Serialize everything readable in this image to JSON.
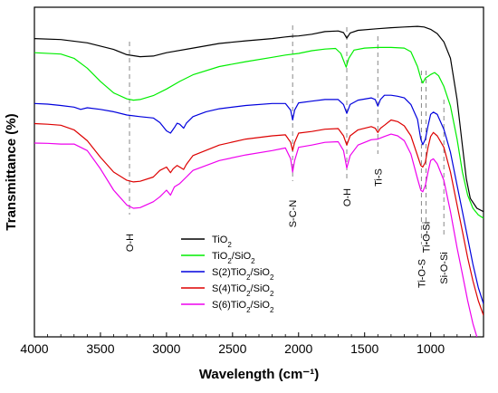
{
  "chart_data": {
    "type": "line",
    "title": "",
    "xlabel": "Wavelength (cm⁻¹)",
    "ylabel": "Transmittance (%)",
    "x_reversed": true,
    "xlim": [
      4000,
      600
    ],
    "ylim": [
      0,
      100
    ],
    "y_ticks_shown": false,
    "grid": false,
    "legend_position": "bottom-center",
    "x_ticks": [
      4000,
      3500,
      3000,
      2500,
      2000,
      1500,
      1000
    ],
    "x_tick_labels": [
      "4000",
      "3500",
      "3000",
      "2500",
      "2000",
      "1500",
      "1000"
    ],
    "annotations": [
      {
        "text": "O-H",
        "x": 3280
      },
      {
        "text": "S-C-N",
        "x": 2045
      },
      {
        "text": "O-H",
        "x": 1635
      },
      {
        "text": "Ti-S",
        "x": 1400
      },
      {
        "text": "Ti-O-S",
        "x": 1070
      },
      {
        "text": "Ti-O-Si",
        "x": 1035
      },
      {
        "text": "Si-O-Si",
        "x": 900
      }
    ],
    "series": [
      {
        "name": "TiO2",
        "label_main": "TiO",
        "label_sub": "2",
        "label_rest": "",
        "color": "#000000",
        "points": [
          [
            4000,
            90.5
          ],
          [
            3800,
            90.2
          ],
          [
            3600,
            89.2
          ],
          [
            3400,
            87.2
          ],
          [
            3300,
            85.6
          ],
          [
            3200,
            85.0
          ],
          [
            3100,
            85.2
          ],
          [
            3000,
            86.2
          ],
          [
            2800,
            87.6
          ],
          [
            2600,
            89.0
          ],
          [
            2400,
            89.8
          ],
          [
            2200,
            90.5
          ],
          [
            2100,
            91.0
          ],
          [
            2045,
            91.2
          ],
          [
            2000,
            91.3
          ],
          [
            1900,
            91.8
          ],
          [
            1800,
            92.6
          ],
          [
            1700,
            92.8
          ],
          [
            1660,
            92.3
          ],
          [
            1635,
            90.6
          ],
          [
            1610,
            92.2
          ],
          [
            1550,
            93.0
          ],
          [
            1400,
            93.5
          ],
          [
            1300,
            93.8
          ],
          [
            1200,
            94.0
          ],
          [
            1100,
            94.2
          ],
          [
            1050,
            94.0
          ],
          [
            1000,
            93.3
          ],
          [
            950,
            92.0
          ],
          [
            900,
            89.5
          ],
          [
            850,
            84.5
          ],
          [
            800,
            72.0
          ],
          [
            760,
            58.0
          ],
          [
            730,
            48.0
          ],
          [
            700,
            42.0
          ],
          [
            650,
            39.0
          ],
          [
            600,
            38.0
          ]
        ]
      },
      {
        "name": "TiO2/SiO2",
        "label_main": "TiO",
        "label_sub": "2",
        "label_rest": "/SiO2",
        "color": "#00ee00",
        "points": [
          [
            4000,
            86.2
          ],
          [
            3800,
            85.8
          ],
          [
            3700,
            84.5
          ],
          [
            3600,
            81.5
          ],
          [
            3500,
            77.5
          ],
          [
            3400,
            74.0
          ],
          [
            3300,
            72.2
          ],
          [
            3250,
            71.8
          ],
          [
            3200,
            72.0
          ],
          [
            3100,
            73.2
          ],
          [
            3000,
            75.2
          ],
          [
            2900,
            77.5
          ],
          [
            2800,
            79.5
          ],
          [
            2600,
            82.0
          ],
          [
            2400,
            83.5
          ],
          [
            2200,
            84.8
          ],
          [
            2100,
            85.5
          ],
          [
            2000,
            86.0
          ],
          [
            1900,
            86.8
          ],
          [
            1800,
            87.3
          ],
          [
            1720,
            87.5
          ],
          [
            1680,
            86.0
          ],
          [
            1640,
            81.8
          ],
          [
            1620,
            84.5
          ],
          [
            1580,
            87.0
          ],
          [
            1500,
            87.6
          ],
          [
            1400,
            87.8
          ],
          [
            1300,
            87.8
          ],
          [
            1200,
            87.6
          ],
          [
            1150,
            86.5
          ],
          [
            1100,
            82.0
          ],
          [
            1075,
            78.5
          ],
          [
            1060,
            77.0
          ],
          [
            1040,
            78.5
          ],
          [
            1020,
            79.0
          ],
          [
            1000,
            79.6
          ],
          [
            970,
            80.2
          ],
          [
            940,
            79.2
          ],
          [
            900,
            76.0
          ],
          [
            850,
            70.0
          ],
          [
            800,
            60.0
          ],
          [
            760,
            50.0
          ],
          [
            720,
            43.0
          ],
          [
            680,
            39.0
          ],
          [
            640,
            37.0
          ],
          [
            600,
            36.0
          ]
        ]
      },
      {
        "name": "S(2)TiO2/SiO2",
        "label_main": "S(2)TiO",
        "label_sub": "2",
        "label_rest": "/SiO2",
        "color": "#0000dd",
        "points": [
          [
            4000,
            70.8
          ],
          [
            3900,
            70.6
          ],
          [
            3800,
            70.2
          ],
          [
            3700,
            69.7
          ],
          [
            3650,
            69.0
          ],
          [
            3600,
            69.5
          ],
          [
            3500,
            69.0
          ],
          [
            3400,
            68.3
          ],
          [
            3300,
            67.3
          ],
          [
            3200,
            66.8
          ],
          [
            3100,
            66.4
          ],
          [
            3050,
            65.0
          ],
          [
            3000,
            62.5
          ],
          [
            2970,
            61.8
          ],
          [
            2940,
            63.5
          ],
          [
            2920,
            64.8
          ],
          [
            2900,
            64.5
          ],
          [
            2870,
            63.3
          ],
          [
            2850,
            64.8
          ],
          [
            2800,
            66.8
          ],
          [
            2700,
            68.3
          ],
          [
            2600,
            69.2
          ],
          [
            2400,
            70.2
          ],
          [
            2200,
            70.8
          ],
          [
            2100,
            70.8
          ],
          [
            2060,
            68.8
          ],
          [
            2045,
            65.8
          ],
          [
            2030,
            68.8
          ],
          [
            2000,
            71.0
          ],
          [
            1900,
            71.5
          ],
          [
            1800,
            72.0
          ],
          [
            1700,
            72.0
          ],
          [
            1660,
            70.5
          ],
          [
            1635,
            67.8
          ],
          [
            1610,
            70.5
          ],
          [
            1550,
            71.8
          ],
          [
            1450,
            72.5
          ],
          [
            1420,
            72.0
          ],
          [
            1400,
            70.0
          ],
          [
            1380,
            72.0
          ],
          [
            1350,
            73.3
          ],
          [
            1300,
            73.3
          ],
          [
            1250,
            73.0
          ],
          [
            1200,
            72.5
          ],
          [
            1150,
            70.5
          ],
          [
            1100,
            66.0
          ],
          [
            1075,
            60.0
          ],
          [
            1060,
            58.3
          ],
          [
            1040,
            60.0
          ],
          [
            1020,
            64.0
          ],
          [
            1000,
            67.5
          ],
          [
            980,
            68.2
          ],
          [
            950,
            67.5
          ],
          [
            900,
            63.0
          ],
          [
            850,
            56.0
          ],
          [
            800,
            46.0
          ],
          [
            760,
            38.0
          ],
          [
            720,
            30.0
          ],
          [
            680,
            22.0
          ],
          [
            640,
            15.0
          ],
          [
            600,
            10.0
          ]
        ]
      },
      {
        "name": "S(4)TiO2/SiO2",
        "label_main": "S(4)TiO",
        "label_sub": "2",
        "label_rest": "/SiO2",
        "color": "#dd0000",
        "points": [
          [
            4000,
            64.7
          ],
          [
            3900,
            64.5
          ],
          [
            3800,
            64.2
          ],
          [
            3700,
            62.8
          ],
          [
            3600,
            59.5
          ],
          [
            3500,
            54.5
          ],
          [
            3400,
            50.0
          ],
          [
            3300,
            47.5
          ],
          [
            3250,
            47.0
          ],
          [
            3200,
            47.2
          ],
          [
            3100,
            48.5
          ],
          [
            3050,
            50.5
          ],
          [
            3000,
            51.5
          ],
          [
            2970,
            49.8
          ],
          [
            2950,
            51.0
          ],
          [
            2920,
            52.0
          ],
          [
            2900,
            51.5
          ],
          [
            2870,
            50.8
          ],
          [
            2850,
            52.3
          ],
          [
            2800,
            55.0
          ],
          [
            2600,
            58.2
          ],
          [
            2400,
            60.0
          ],
          [
            2200,
            61.0
          ],
          [
            2100,
            61.3
          ],
          [
            2060,
            59.0
          ],
          [
            2045,
            56.5
          ],
          [
            2030,
            59.0
          ],
          [
            2000,
            61.8
          ],
          [
            1900,
            62.3
          ],
          [
            1800,
            63.0
          ],
          [
            1700,
            63.2
          ],
          [
            1660,
            61.0
          ],
          [
            1635,
            58.2
          ],
          [
            1610,
            61.0
          ],
          [
            1550,
            62.8
          ],
          [
            1450,
            63.8
          ],
          [
            1420,
            63.3
          ],
          [
            1400,
            62.0
          ],
          [
            1380,
            63.3
          ],
          [
            1350,
            64.2
          ],
          [
            1300,
            65.8
          ],
          [
            1250,
            65.3
          ],
          [
            1200,
            64.0
          ],
          [
            1150,
            61.0
          ],
          [
            1100,
            55.0
          ],
          [
            1075,
            52.0
          ],
          [
            1060,
            51.5
          ],
          [
            1040,
            53.0
          ],
          [
            1020,
            57.5
          ],
          [
            1000,
            60.8
          ],
          [
            980,
            62.0
          ],
          [
            950,
            61.0
          ],
          [
            900,
            57.5
          ],
          [
            850,
            50.0
          ],
          [
            800,
            40.0
          ],
          [
            760,
            32.0
          ],
          [
            720,
            24.0
          ],
          [
            680,
            17.0
          ],
          [
            640,
            11.0
          ],
          [
            600,
            6.5
          ]
        ]
      },
      {
        "name": "S(6)TiO2/SiO2",
        "label_main": "S(6)TiO",
        "label_sub": "2",
        "label_rest": "/SiO2",
        "color": "#ee00ee",
        "points": [
          [
            4000,
            58.8
          ],
          [
            3900,
            58.7
          ],
          [
            3800,
            58.5
          ],
          [
            3700,
            58.5
          ],
          [
            3600,
            56.5
          ],
          [
            3500,
            51.0
          ],
          [
            3400,
            44.5
          ],
          [
            3300,
            40.0
          ],
          [
            3250,
            39.0
          ],
          [
            3200,
            39.2
          ],
          [
            3100,
            41.0
          ],
          [
            3050,
            42.5
          ],
          [
            3000,
            44.5
          ],
          [
            2970,
            43.0
          ],
          [
            2940,
            45.5
          ],
          [
            2900,
            46.5
          ],
          [
            2850,
            48.5
          ],
          [
            2800,
            50.5
          ],
          [
            2600,
            53.5
          ],
          [
            2400,
            55.2
          ],
          [
            2200,
            56.5
          ],
          [
            2100,
            57.3
          ],
          [
            2060,
            54.0
          ],
          [
            2045,
            50.0
          ],
          [
            2030,
            53.5
          ],
          [
            2000,
            57.5
          ],
          [
            1900,
            58.2
          ],
          [
            1800,
            59.0
          ],
          [
            1700,
            59.2
          ],
          [
            1660,
            56.5
          ],
          [
            1635,
            51.2
          ],
          [
            1610,
            55.0
          ],
          [
            1550,
            58.2
          ],
          [
            1450,
            59.8
          ],
          [
            1400,
            60.0
          ],
          [
            1350,
            60.8
          ],
          [
            1300,
            61.5
          ],
          [
            1250,
            61.0
          ],
          [
            1200,
            59.5
          ],
          [
            1150,
            55.5
          ],
          [
            1100,
            48.0
          ],
          [
            1075,
            44.5
          ],
          [
            1060,
            44.0
          ],
          [
            1040,
            46.0
          ],
          [
            1020,
            50.0
          ],
          [
            1000,
            53.5
          ],
          [
            980,
            54.0
          ],
          [
            950,
            52.5
          ],
          [
            900,
            47.5
          ],
          [
            850,
            38.0
          ],
          [
            800,
            27.0
          ],
          [
            760,
            19.0
          ],
          [
            720,
            11.0
          ],
          [
            680,
            4.0
          ],
          [
            650,
            0.0
          ]
        ]
      }
    ]
  }
}
